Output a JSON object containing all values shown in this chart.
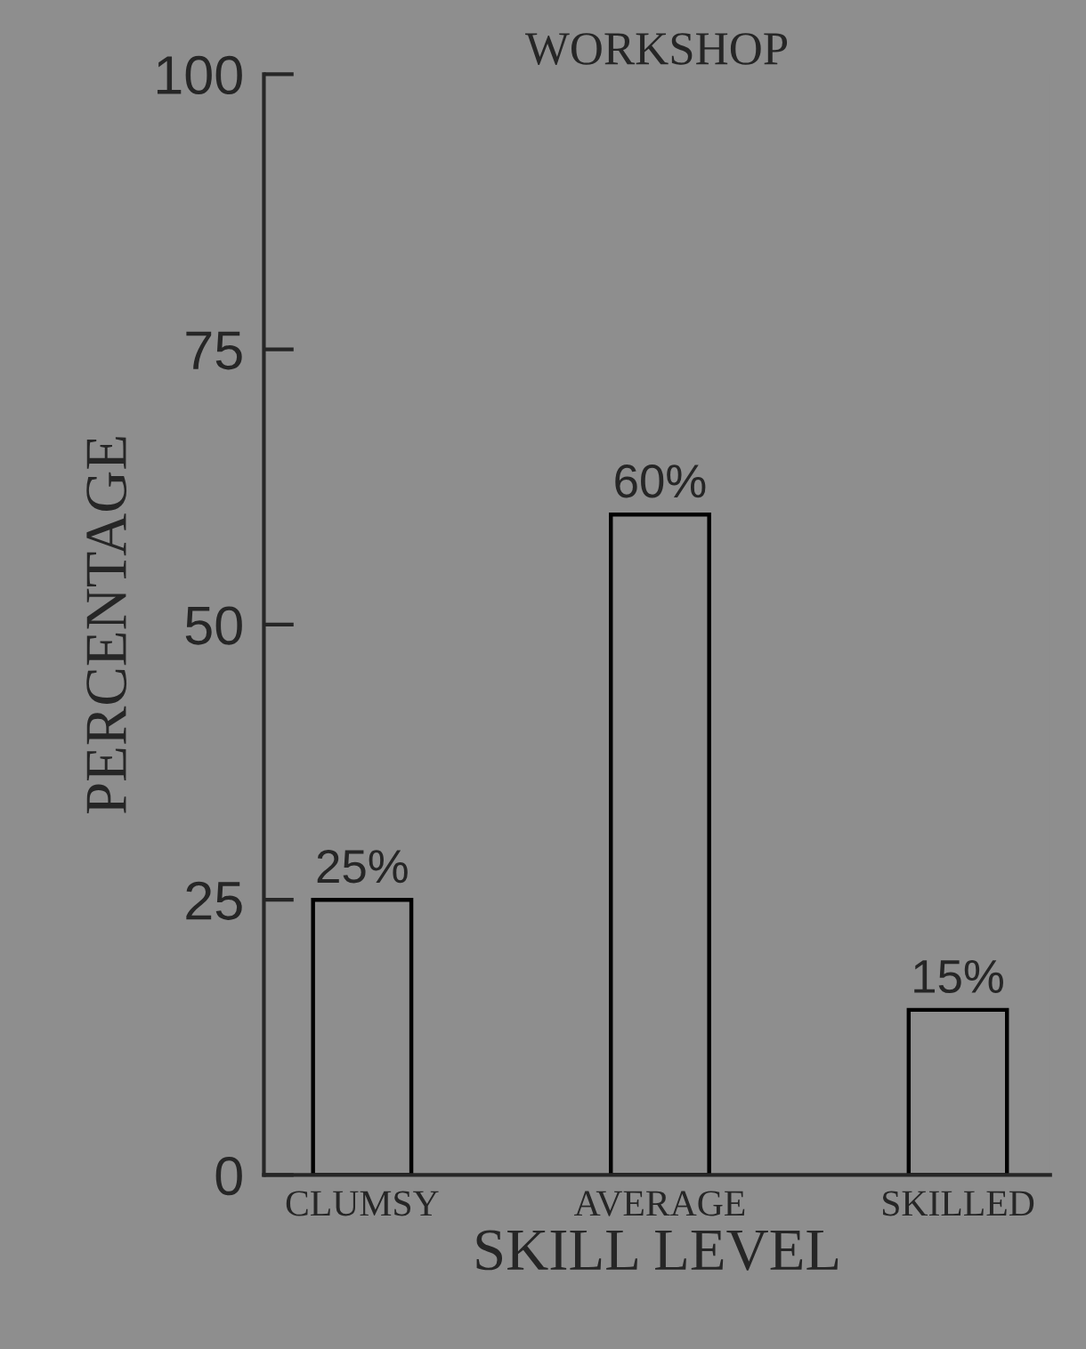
{
  "chart_data": {
    "type": "bar",
    "title": "WORKSHOP",
    "xlabel": "SKILL LEVEL",
    "ylabel": "PERCENTAGE",
    "categories": [
      "CLUMSY",
      "AVERAGE",
      "SKILLED"
    ],
    "values": [
      25,
      60,
      15
    ],
    "value_labels": [
      "25%",
      "60%",
      "15%"
    ],
    "color": "#8e8e8e",
    "ylim": [
      0,
      100
    ],
    "yticks": [
      0,
      25,
      50,
      75,
      100
    ],
    "grid": false
  }
}
